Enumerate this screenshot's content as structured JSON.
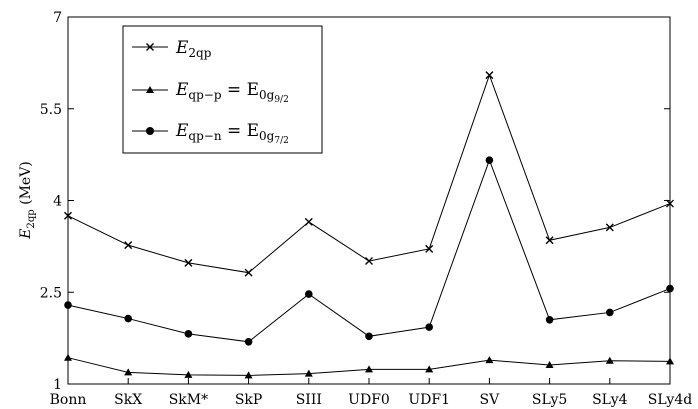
{
  "chart_data": {
    "type": "line",
    "categories": [
      "Bonn",
      "SkX",
      "SkM*",
      "SkP",
      "SIII",
      "UDF0",
      "UDF1",
      "SV",
      "SLy5",
      "SLy4",
      "SLy4d"
    ],
    "series": [
      {
        "name": "E_2qp",
        "marker": "cross",
        "values": [
          3.75,
          3.27,
          2.98,
          2.82,
          3.65,
          3.01,
          3.21,
          6.05,
          3.35,
          3.56,
          3.95
        ]
      },
      {
        "name": "E_qp-p = E_0g9/2",
        "marker": "triangle",
        "values": [
          1.43,
          1.19,
          1.15,
          1.14,
          1.17,
          1.24,
          1.24,
          1.39,
          1.31,
          1.38,
          1.37
        ]
      },
      {
        "name": "E_qp-n = E_0g7/2",
        "marker": "circle",
        "values": [
          2.29,
          2.07,
          1.82,
          1.69,
          2.47,
          1.78,
          1.93,
          4.66,
          2.05,
          2.17,
          2.56
        ]
      }
    ],
    "ylabel": "E_2qp (MeV)",
    "ylim": [
      1,
      7
    ],
    "yticks": [
      1,
      2.5,
      4,
      5.5,
      7
    ],
    "ytick_labels": [
      "1",
      "2.5",
      "4",
      "5.5",
      "7"
    ],
    "grid": false,
    "legend_position": "top-left"
  },
  "legend": [
    {
      "main": "E",
      "sub": "2qp",
      "rest": "",
      "rest_sub": ""
    },
    {
      "main": "E",
      "sub": "qp−p",
      "rest": " = E",
      "rest_sub": "0g",
      "rest_sub2": "9/2"
    },
    {
      "main": "E",
      "sub": "qp−n",
      "rest": " = E",
      "rest_sub": "0g",
      "rest_sub2": "7/2"
    }
  ],
  "axis_title": {
    "main": "E",
    "sub": "2qp",
    "unit": " (MeV)"
  },
  "colors": {
    "line": "#000000",
    "background": "#ffffff"
  }
}
